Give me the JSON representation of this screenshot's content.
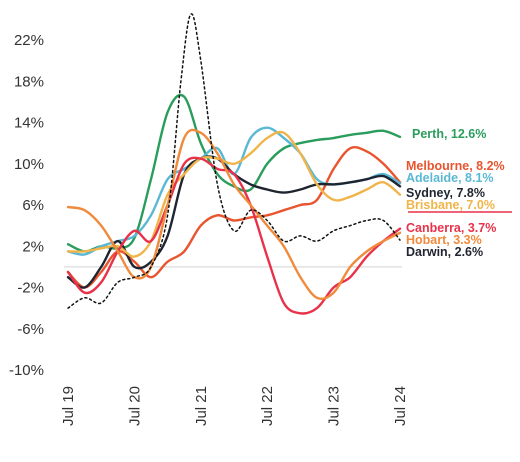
{
  "chart_data": {
    "type": "line",
    "title": "",
    "xlabel": "",
    "ylabel": "",
    "x_ticks": [
      "Jul 19",
      "Jul 20",
      "Jul 21",
      "Jul 22",
      "Jul 23",
      "Jul 24"
    ],
    "y_ticks": [
      "22%",
      "18%",
      "14%",
      "10%",
      "6%",
      "2%",
      "-2%",
      "-6%",
      "-10%"
    ],
    "ylim": [
      -10,
      24
    ],
    "xlim": [
      2019.5,
      2024.55
    ],
    "zero_line": true,
    "grid": false,
    "series": [
      {
        "name": "Perth",
        "label": "Perth, 12.6%",
        "color": "#2a9d5c",
        "dash": "",
        "x": [
          2019.5,
          2019.75,
          2020.0,
          2020.25,
          2020.5,
          2020.75,
          2021.0,
          2021.25,
          2021.5,
          2021.75,
          2022.0,
          2022.25,
          2022.5,
          2022.75,
          2023.0,
          2023.25,
          2023.5,
          2023.75,
          2024.0,
          2024.25,
          2024.5
        ],
        "y": [
          2.2,
          1.5,
          2.0,
          1.8,
          2.8,
          8.5,
          15.0,
          16.5,
          12.0,
          9.0,
          7.8,
          7.5,
          10.0,
          11.5,
          12.0,
          12.3,
          12.5,
          12.8,
          13.0,
          13.2,
          12.6
        ]
      },
      {
        "name": "Melbourne",
        "label": "Melbourne, 8.2%",
        "color": "#e8552f",
        "dash": "",
        "x": [
          2019.5,
          2019.75,
          2020.0,
          2020.25,
          2020.5,
          2020.75,
          2021.0,
          2021.25,
          2021.5,
          2021.75,
          2022.0,
          2022.25,
          2022.5,
          2022.75,
          2023.0,
          2023.25,
          2023.5,
          2023.75,
          2024.0,
          2024.25,
          2024.5
        ],
        "y": [
          -0.5,
          -2.0,
          -0.5,
          1.5,
          0.5,
          -1.0,
          0.5,
          1.5,
          4.0,
          5.0,
          4.5,
          4.8,
          5.0,
          5.5,
          6.0,
          6.5,
          9.5,
          11.5,
          11.2,
          10.0,
          8.2
        ]
      },
      {
        "name": "Adelaide",
        "label": "Adelaide, 8.1%",
        "color": "#5bb8d4",
        "dash": "",
        "x": [
          2019.5,
          2019.75,
          2020.0,
          2020.25,
          2020.5,
          2020.75,
          2021.0,
          2021.25,
          2021.5,
          2021.75,
          2022.0,
          2022.25,
          2022.5,
          2022.75,
          2023.0,
          2023.25,
          2023.5,
          2023.75,
          2024.0,
          2024.25,
          2024.5
        ],
        "y": [
          1.5,
          1.2,
          2.0,
          2.5,
          3.0,
          5.0,
          8.5,
          9.5,
          10.5,
          11.5,
          9.0,
          12.5,
          13.5,
          12.5,
          11.0,
          8.5,
          8.0,
          8.2,
          8.5,
          9.0,
          8.1
        ]
      },
      {
        "name": "Sydney",
        "label": "Sydney, 7.8%",
        "color": "#1f2530",
        "dash": "",
        "x": [
          2019.5,
          2019.75,
          2020.0,
          2020.25,
          2020.5,
          2020.75,
          2021.0,
          2021.25,
          2021.5,
          2021.75,
          2022.0,
          2022.25,
          2022.5,
          2022.75,
          2023.0,
          2023.25,
          2023.5,
          2023.75,
          2024.0,
          2024.25,
          2024.5
        ],
        "y": [
          -1.0,
          -2.0,
          0.0,
          2.5,
          0.0,
          0.5,
          3.0,
          9.0,
          10.5,
          10.5,
          9.0,
          8.0,
          7.5,
          7.2,
          7.5,
          8.0,
          8.0,
          8.2,
          8.5,
          8.8,
          7.8
        ]
      },
      {
        "name": "Brisbane",
        "label": "Brisbane, 7.0%",
        "color": "#f0b44a",
        "dash": "",
        "x": [
          2019.5,
          2019.75,
          2020.0,
          2020.25,
          2020.5,
          2020.75,
          2021.0,
          2021.25,
          2021.5,
          2021.75,
          2022.0,
          2022.25,
          2022.5,
          2022.75,
          2023.0,
          2023.25,
          2023.5,
          2023.75,
          2024.0,
          2024.25,
          2024.5
        ],
        "y": [
          1.5,
          1.5,
          1.8,
          2.0,
          1.0,
          2.5,
          7.0,
          9.0,
          10.5,
          10.5,
          10.0,
          11.0,
          12.5,
          13.0,
          11.0,
          8.0,
          6.5,
          6.8,
          7.5,
          8.2,
          7.0
        ]
      },
      {
        "name": "Canberra",
        "label": "Canberra, 3.7%",
        "color": "#e8324a",
        "dash": "",
        "x": [
          2019.5,
          2019.75,
          2020.0,
          2020.25,
          2020.5,
          2020.75,
          2021.0,
          2021.25,
          2021.5,
          2021.75,
          2022.0,
          2022.25,
          2022.5,
          2022.75,
          2023.0,
          2023.25,
          2023.5,
          2023.75,
          2024.0,
          2024.25,
          2024.5
        ],
        "y": [
          -0.5,
          -2.5,
          -1.5,
          1.5,
          3.5,
          2.5,
          6.0,
          10.0,
          10.5,
          9.5,
          9.0,
          6.0,
          1.0,
          -3.5,
          -4.5,
          -4.0,
          -2.0,
          -1.0,
          1.0,
          2.5,
          3.7
        ]
      },
      {
        "name": "Hobart",
        "label": "Hobart, 3.3%",
        "color": "#f08a3c",
        "dash": "",
        "x": [
          2019.5,
          2019.75,
          2020.0,
          2020.25,
          2020.5,
          2020.75,
          2021.0,
          2021.25,
          2021.5,
          2021.75,
          2022.0,
          2022.25,
          2022.5,
          2022.75,
          2023.0,
          2023.25,
          2023.5,
          2023.75,
          2024.0,
          2024.25,
          2024.5
        ],
        "y": [
          5.8,
          5.5,
          4.0,
          1.5,
          -1.0,
          0.0,
          6.0,
          12.5,
          13.0,
          11.0,
          8.0,
          6.0,
          4.0,
          2.0,
          -1.0,
          -3.0,
          -2.5,
          0.0,
          1.5,
          2.5,
          3.3
        ]
      },
      {
        "name": "Darwin",
        "label": "Darwin, 2.6%",
        "color": "#111111",
        "dash": "2,3",
        "x": [
          2019.5,
          2019.75,
          2020.0,
          2020.25,
          2020.5,
          2020.75,
          2021.0,
          2021.2,
          2021.35,
          2021.5,
          2021.75,
          2022.0,
          2022.25,
          2022.5,
          2022.75,
          2023.0,
          2023.25,
          2023.5,
          2023.75,
          2024.0,
          2024.25,
          2024.5
        ],
        "y": [
          -4.0,
          -3.0,
          -3.5,
          -1.5,
          -1.0,
          0.0,
          5.0,
          18.0,
          24.5,
          20.0,
          8.0,
          3.5,
          5.5,
          4.5,
          2.5,
          3.0,
          2.5,
          3.5,
          4.0,
          4.5,
          4.5,
          2.6
        ]
      }
    ]
  }
}
